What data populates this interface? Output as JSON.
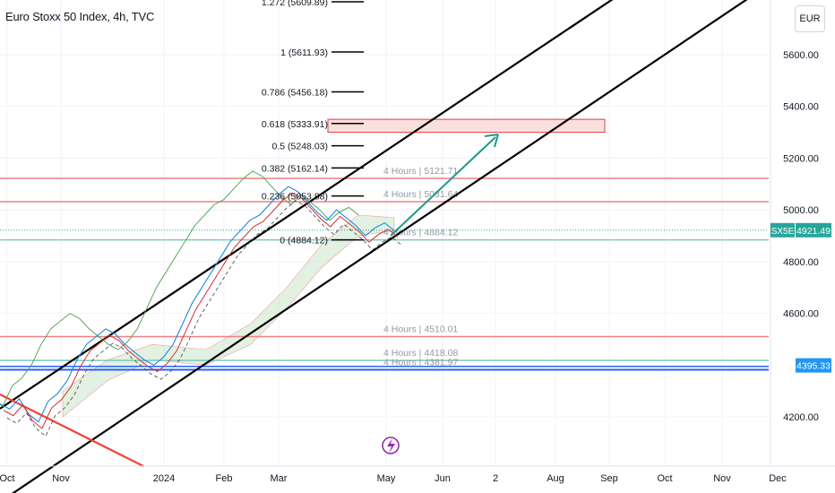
{
  "chart_title": "Euro Stoxx 50 Index, 4h, TVC",
  "currency_button": "EUR",
  "colors": {
    "channel": "#000000",
    "resistance": "#f08080",
    "support_teal": "#7fc7bd",
    "support_blue": "#2962ff",
    "zone_fill": "#f9c9c9",
    "arrow": "#1a9a8a",
    "tenkan": "#d32f2f",
    "kijun": "#1e88e5",
    "chikou": "#43a047",
    "cloud": "#cfe8cf",
    "price_badge": "#26a69a",
    "blue_badge": "#2196f3",
    "downtrend": "#f44336",
    "logo": "#9c27b0"
  },
  "icons": {
    "logo": "lightning-logo-icon"
  },
  "chart_data": {
    "type": "line",
    "title": "Euro Stoxx 50 Index, 4h, TVC",
    "symbol": "SX5E",
    "last_price": "4921.49",
    "y_axis": {
      "ticks": [
        "5600.00",
        "5400.00",
        "5200.00",
        "5000.00",
        "4800.00",
        "4600.00",
        "4200.00"
      ],
      "tick_values": [
        5600,
        5400,
        5200,
        5000,
        4800,
        4600,
        4200
      ],
      "range": [
        4120,
        5800
      ]
    },
    "x_axis": {
      "ticks": [
        "Oct",
        "Nov",
        "2024",
        "Feb",
        "Mar",
        "May",
        "Jun",
        "2",
        "Aug",
        "Sep",
        "Oct",
        "Nov",
        "Dec"
      ]
    },
    "fib_levels": [
      {
        "label": "1.272 (5609.89)",
        "value": 5609.89
      },
      {
        "label": "1 (5611.93)",
        "value": 5611.93
      },
      {
        "label": "0.786 (5456.18)",
        "value": 5456.18
      },
      {
        "label": "0.618 (5333.91)",
        "value": 5333.91
      },
      {
        "label": "0.5 (5248.03)",
        "value": 5248.03
      },
      {
        "label": "0.382 (5162.14)",
        "value": 5162.14
      },
      {
        "label": "0.236 (5053.88)",
        "value": 5053.88
      },
      {
        "label": "0 (4884.12)",
        "value": 4884.12
      }
    ],
    "horizontal_levels": [
      {
        "label": "4 Hours | 5121.71",
        "value": 5121.71,
        "color": "resistance"
      },
      {
        "label": "4 Hours | 5031.64",
        "value": 5031.64,
        "color": "resistance"
      },
      {
        "label": "4 Hours | 4884.12",
        "value": 4884.12,
        "color": "support_teal"
      },
      {
        "label": "4 Hours | 4510.01",
        "value": 4510.01,
        "color": "resistance"
      },
      {
        "label": "4 Hours | 4418.08",
        "value": 4418.08,
        "color": "support_teal"
      },
      {
        "label": "4 Hours | 4381.97",
        "value": 4381.97,
        "color": "support_blue"
      }
    ],
    "price_badges": [
      {
        "symbol": "SX5E",
        "value": "4921.49",
        "color": "price_badge"
      },
      {
        "value": "4395.33",
        "color": "blue_badge"
      }
    ],
    "target_zone": {
      "from": 5300,
      "to": 5350
    },
    "price_series": [
      4250,
      4230,
      4270,
      4210,
      4180,
      4260,
      4290,
      4340,
      4420,
      4480,
      4510,
      4540,
      4520,
      4480,
      4450,
      4420,
      4400,
      4430,
      4480,
      4560,
      4640,
      4700,
      4760,
      4820,
      4880,
      4920,
      4960,
      4980,
      5020,
      5060,
      5090,
      5070,
      5030,
      4990,
      4960,
      5000,
      4970,
      4940,
      4900,
      4930,
      4950,
      4920
    ]
  }
}
